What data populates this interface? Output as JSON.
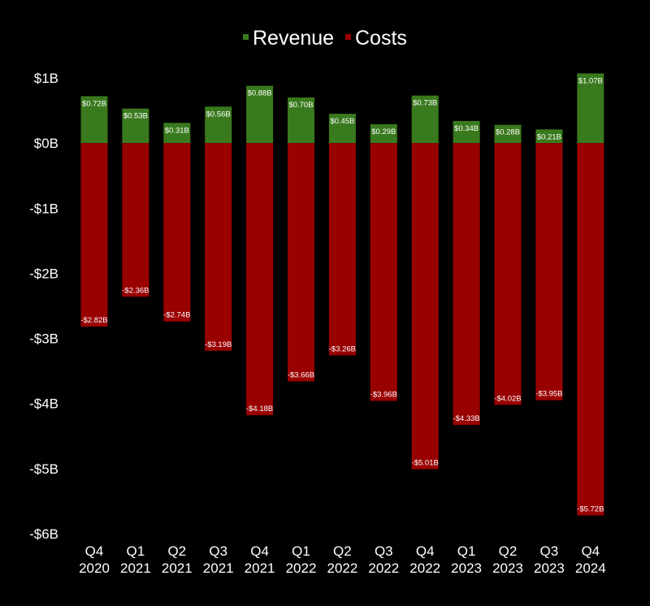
{
  "chart_data": {
    "type": "bar",
    "stacked": true,
    "categories": [
      [
        "Q4",
        "2020"
      ],
      [
        "Q1",
        "2021"
      ],
      [
        "Q2",
        "2021"
      ],
      [
        "Q3",
        "2021"
      ],
      [
        "Q4",
        "2021"
      ],
      [
        "Q1",
        "2022"
      ],
      [
        "Q2",
        "2022"
      ],
      [
        "Q3",
        "2022"
      ],
      [
        "Q4",
        "2022"
      ],
      [
        "Q1",
        "2023"
      ],
      [
        "Q2",
        "2023"
      ],
      [
        "Q3",
        "2023"
      ],
      [
        "Q4",
        "2024"
      ]
    ],
    "series": [
      {
        "name": "Revenue",
        "color": "#3a7a1e",
        "values": [
          0.72,
          0.53,
          0.31,
          0.56,
          0.88,
          0.7,
          0.45,
          0.29,
          0.73,
          0.34,
          0.28,
          0.21,
          1.07
        ],
        "labels": [
          "$0.72B",
          "$0.53B",
          "$0.31B",
          "$0.56B",
          "$0.88B",
          "$0.70B",
          "$0.45B",
          "$0.29B",
          "$0.73B",
          "$0.34B",
          "$0.28B",
          "$0.21B",
          "$1.07B"
        ]
      },
      {
        "name": "Costs",
        "color": "#990000",
        "values": [
          -2.82,
          -2.36,
          -2.74,
          -3.19,
          -4.18,
          -3.66,
          -3.26,
          -3.96,
          -5.01,
          -4.33,
          -4.02,
          -3.95,
          -5.72
        ],
        "labels": [
          "-$2.82B",
          "-$2.36B",
          "-$2.74B",
          "-$3.19B",
          "-$4.18B",
          "-$3.66B",
          "-$3.26B",
          "-$3.96B",
          "-$5.01B",
          "-$4.33B",
          "-$4.02B",
          "-$3.95B",
          "-$5.72B"
        ]
      }
    ],
    "yticks": [
      1,
      0,
      -1,
      -2,
      -3,
      -4,
      -5,
      -6
    ],
    "ytick_labels": [
      "$1B",
      "$0B",
      "-$1B",
      "-$2B",
      "-$3B",
      "-$4B",
      "-$5B",
      "-$6B"
    ],
    "ylim": [
      -6,
      1
    ],
    "unit": "billions USD",
    "grid": false,
    "legend_position": "top-center",
    "title": "",
    "xlabel": "",
    "ylabel": ""
  }
}
